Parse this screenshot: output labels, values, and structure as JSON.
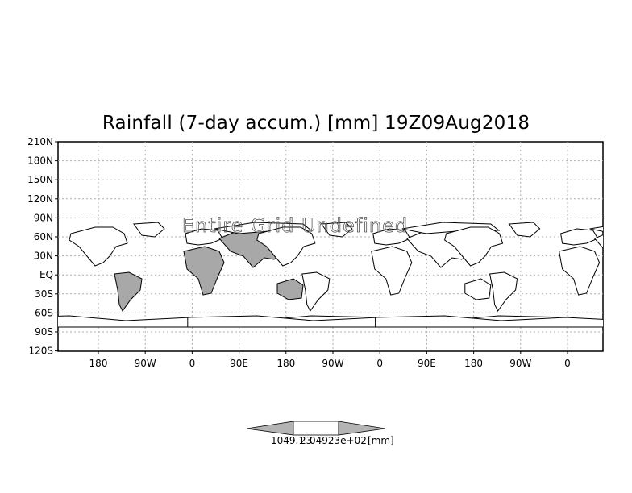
{
  "title": "Rainfall (7-day accum.) [mm] 19Z09Aug2018",
  "overlay_message": "Entire Grid Undefined",
  "axes": {
    "y_ticks": [
      "210N",
      "180N",
      "150N",
      "120N",
      "90N",
      "60N",
      "30N",
      "EQ",
      "30S",
      "60S",
      "90S",
      "120S"
    ],
    "x_ticks": [
      "180",
      "90W",
      "0",
      "90E",
      "180",
      "90W",
      "0",
      "90E",
      "180",
      "90W",
      "0"
    ]
  },
  "colorbar": {
    "label_a": "1049.1",
    "label_b": "23",
    "label_c": "04923e+02",
    "unit": "[mm]"
  },
  "colors": {
    "land_shaded": "#a8a8a8",
    "colorbar_fill": "#b4b4b4",
    "frame": "#000000",
    "grid": "#b0b0b0"
  }
}
